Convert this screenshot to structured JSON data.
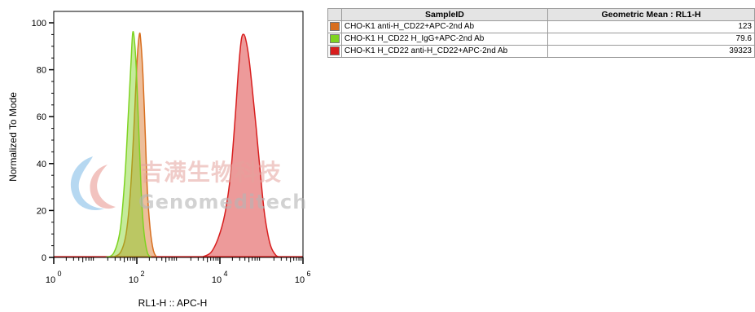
{
  "chart_data": {
    "type": "area",
    "xlabel": "RL1-H :: APC-H",
    "ylabel": "Normalized To Mode",
    "x_scale": "log",
    "xlim": [
      1,
      1000000
    ],
    "ylim": [
      0,
      100
    ],
    "x_ticks": [
      {
        "value": 1,
        "base": "10",
        "exp": "0"
      },
      {
        "value": 100,
        "base": "10",
        "exp": "2"
      },
      {
        "value": 10000,
        "base": "10",
        "exp": "4"
      },
      {
        "value": 1000000,
        "base": "10",
        "exp": "6"
      }
    ],
    "y_ticks": [
      "0",
      "20",
      "40",
      "60",
      "80",
      "100"
    ],
    "grid": false,
    "series": [
      {
        "name": "CHO-K1 anti-H_CD22+APC-2nd Ab",
        "color": "#d86e1e",
        "x": [
          25,
          40,
          55,
          70,
          85,
          100,
          115,
          125,
          140,
          160,
          180,
          210,
          250,
          300
        ],
        "y": [
          0,
          2,
          10,
          28,
          55,
          82,
          95,
          92,
          78,
          52,
          28,
          12,
          3,
          0
        ]
      },
      {
        "name": "CHO-K1 H_CD22 H_IgG+APC-2nd Ab",
        "color": "#7ed321",
        "x": [
          18,
          28,
          40,
          52,
          62,
          72,
          80,
          90,
          100,
          115,
          130,
          150,
          180,
          220
        ],
        "y": [
          0,
          2,
          12,
          35,
          60,
          82,
          96,
          90,
          75,
          48,
          25,
          10,
          2,
          0
        ]
      },
      {
        "name": "CHO-K1 H_CD22 anti-H_CD22+APC-2nd Ab",
        "color": "#d81e1e",
        "x": [
          3500,
          6000,
          9000,
          13000,
          18000,
          23000,
          28000,
          33000,
          38000,
          43000,
          50000,
          60000,
          75000,
          95000,
          120000,
          160000,
          220000,
          300000
        ],
        "y": [
          0,
          2,
          8,
          18,
          35,
          58,
          80,
          93,
          95,
          92,
          85,
          72,
          55,
          35,
          18,
          6,
          1,
          0
        ]
      }
    ]
  },
  "stats_table": {
    "headers": {
      "sample": "SampleID",
      "mean": "Geometric Mean : RL1-H"
    },
    "rows": [
      {
        "color": "#d86e1e",
        "sample": "CHO-K1 anti-H_CD22+APC-2nd Ab",
        "mean": "123"
      },
      {
        "color": "#7ed321",
        "sample": "CHO-K1 H_CD22 H_IgG+APC-2nd Ab",
        "mean": "79.6"
      },
      {
        "color": "#d81e1e",
        "sample": "CHO-K1 H_CD22 anti-H_CD22+APC-2nd Ab",
        "mean": "39323"
      }
    ]
  },
  "watermark": {
    "cn": "吉满生物科技",
    "en": "Genomeditech"
  }
}
